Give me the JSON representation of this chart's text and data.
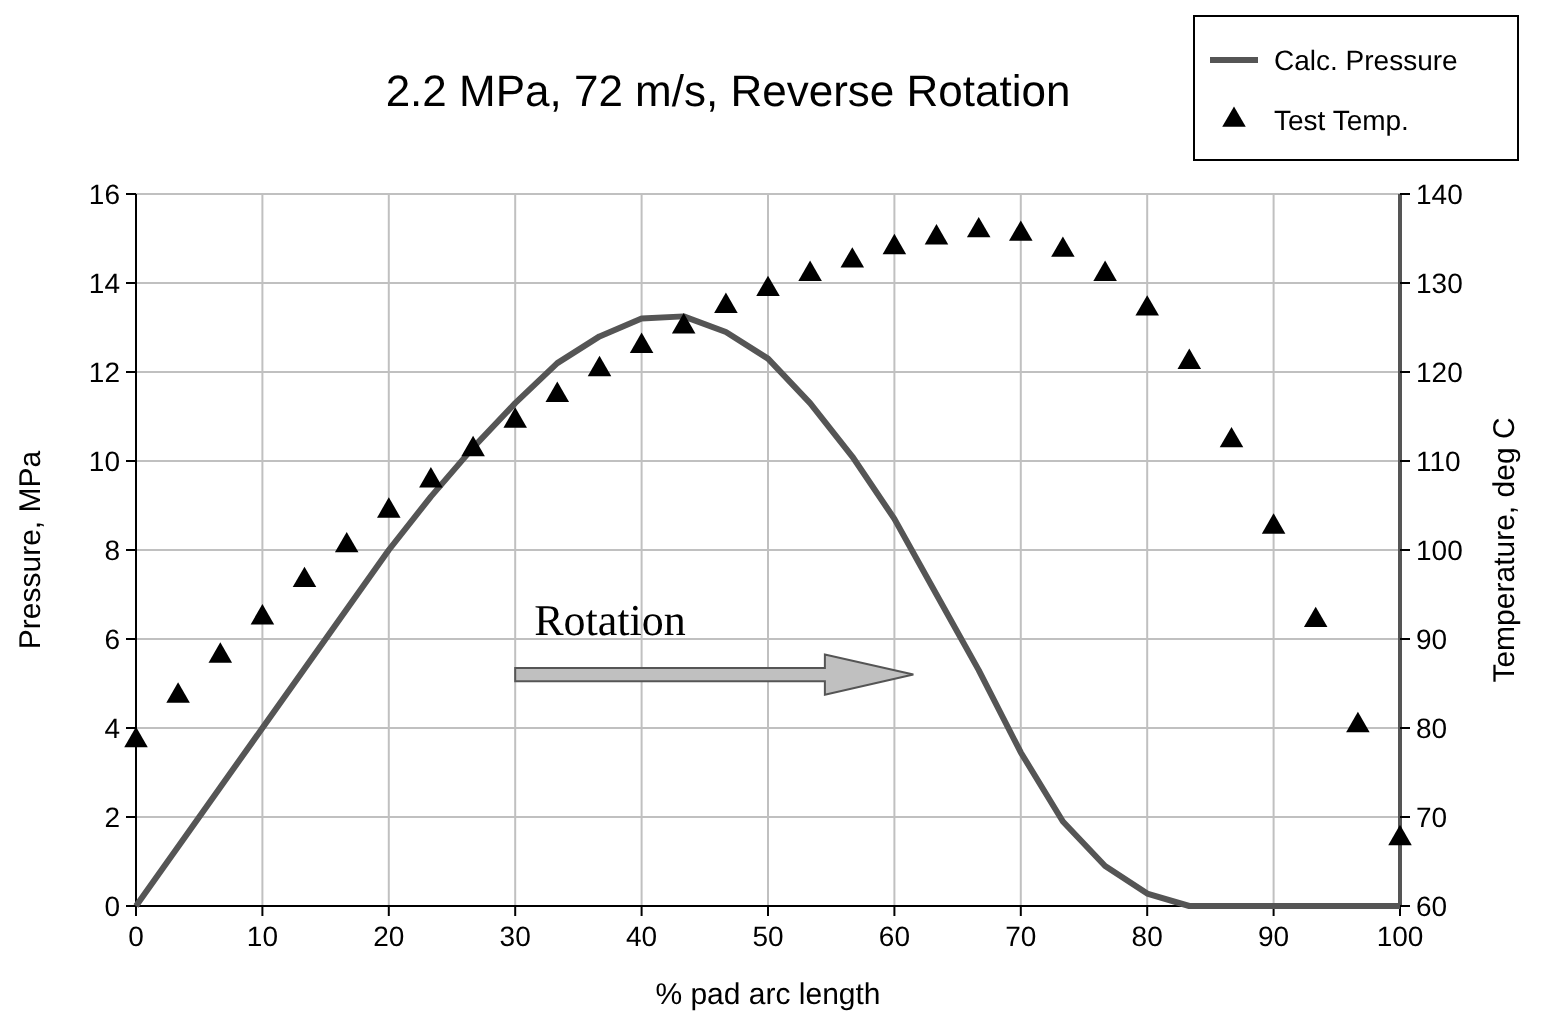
{
  "chart_data": {
    "type": "line",
    "title": "2.2 MPa, 72 m/s, Reverse Rotation",
    "xlabel": "% pad arc length",
    "ylabel": "Pressure, MPa",
    "y2label": "Temperature, deg C",
    "xlim": [
      0,
      100
    ],
    "xticks": [
      0,
      10,
      20,
      30,
      40,
      50,
      60,
      70,
      80,
      90,
      100
    ],
    "ylim": [
      0,
      16
    ],
    "yticks": [
      0,
      2,
      4,
      6,
      8,
      10,
      12,
      14,
      16
    ],
    "y2lim": [
      60,
      140
    ],
    "y2ticks": [
      60,
      70,
      80,
      90,
      100,
      110,
      120,
      130,
      140
    ],
    "grid": true,
    "legend": "top right",
    "annotations": [
      "Rotation"
    ],
    "series": [
      {
        "name": "Calc. Pressure",
        "color": "#555555",
        "marker": "none",
        "line_style": "solid",
        "x": [
          0,
          3.33,
          6.67,
          10,
          13.33,
          16.67,
          20,
          23.33,
          26.67,
          30,
          33.33,
          36.67,
          40,
          43.33,
          46.67,
          50,
          53.33,
          56.67,
          60,
          63.33,
          66.67,
          70,
          73.33,
          76.67,
          80,
          83.33,
          86.67,
          90,
          93.33,
          96.67,
          100
        ],
        "values": [
          0,
          1.33,
          2.67,
          4,
          5.33,
          6.67,
          8,
          9.2,
          10.3,
          11.3,
          12.2,
          12.8,
          13.2,
          13.25,
          12.9,
          12.3,
          11.3,
          10.1,
          8.7,
          7.0,
          5.3,
          3.45,
          1.9,
          0.9,
          0.28,
          0,
          0,
          0,
          0,
          0,
          0
        ]
      },
      {
        "name": "Test Temp.",
        "type": "scatter",
        "axis": "y2",
        "color": "#000000",
        "marker": "triangle",
        "x": [
          0,
          3.33,
          6.67,
          10,
          13.33,
          16.67,
          20,
          23.33,
          26.67,
          30,
          33.33,
          36.67,
          40,
          43.33,
          46.67,
          50,
          53.33,
          56.67,
          60,
          63.33,
          66.67,
          70,
          73.33,
          76.67,
          80,
          83.33,
          86.67,
          90,
          93.33,
          96.67,
          100
        ],
        "values": [
          78.6,
          83.6,
          88.1,
          92.4,
          96.6,
          100.5,
          104.4,
          107.8,
          111.3,
          114.5,
          117.4,
          120.3,
          122.9,
          125.1,
          127.4,
          129.3,
          131,
          132.5,
          134,
          135.1,
          135.9,
          135.5,
          133.7,
          131,
          127.1,
          121.1,
          112.3,
          102.6,
          92.1,
          80.3,
          67.6
        ]
      }
    ]
  }
}
